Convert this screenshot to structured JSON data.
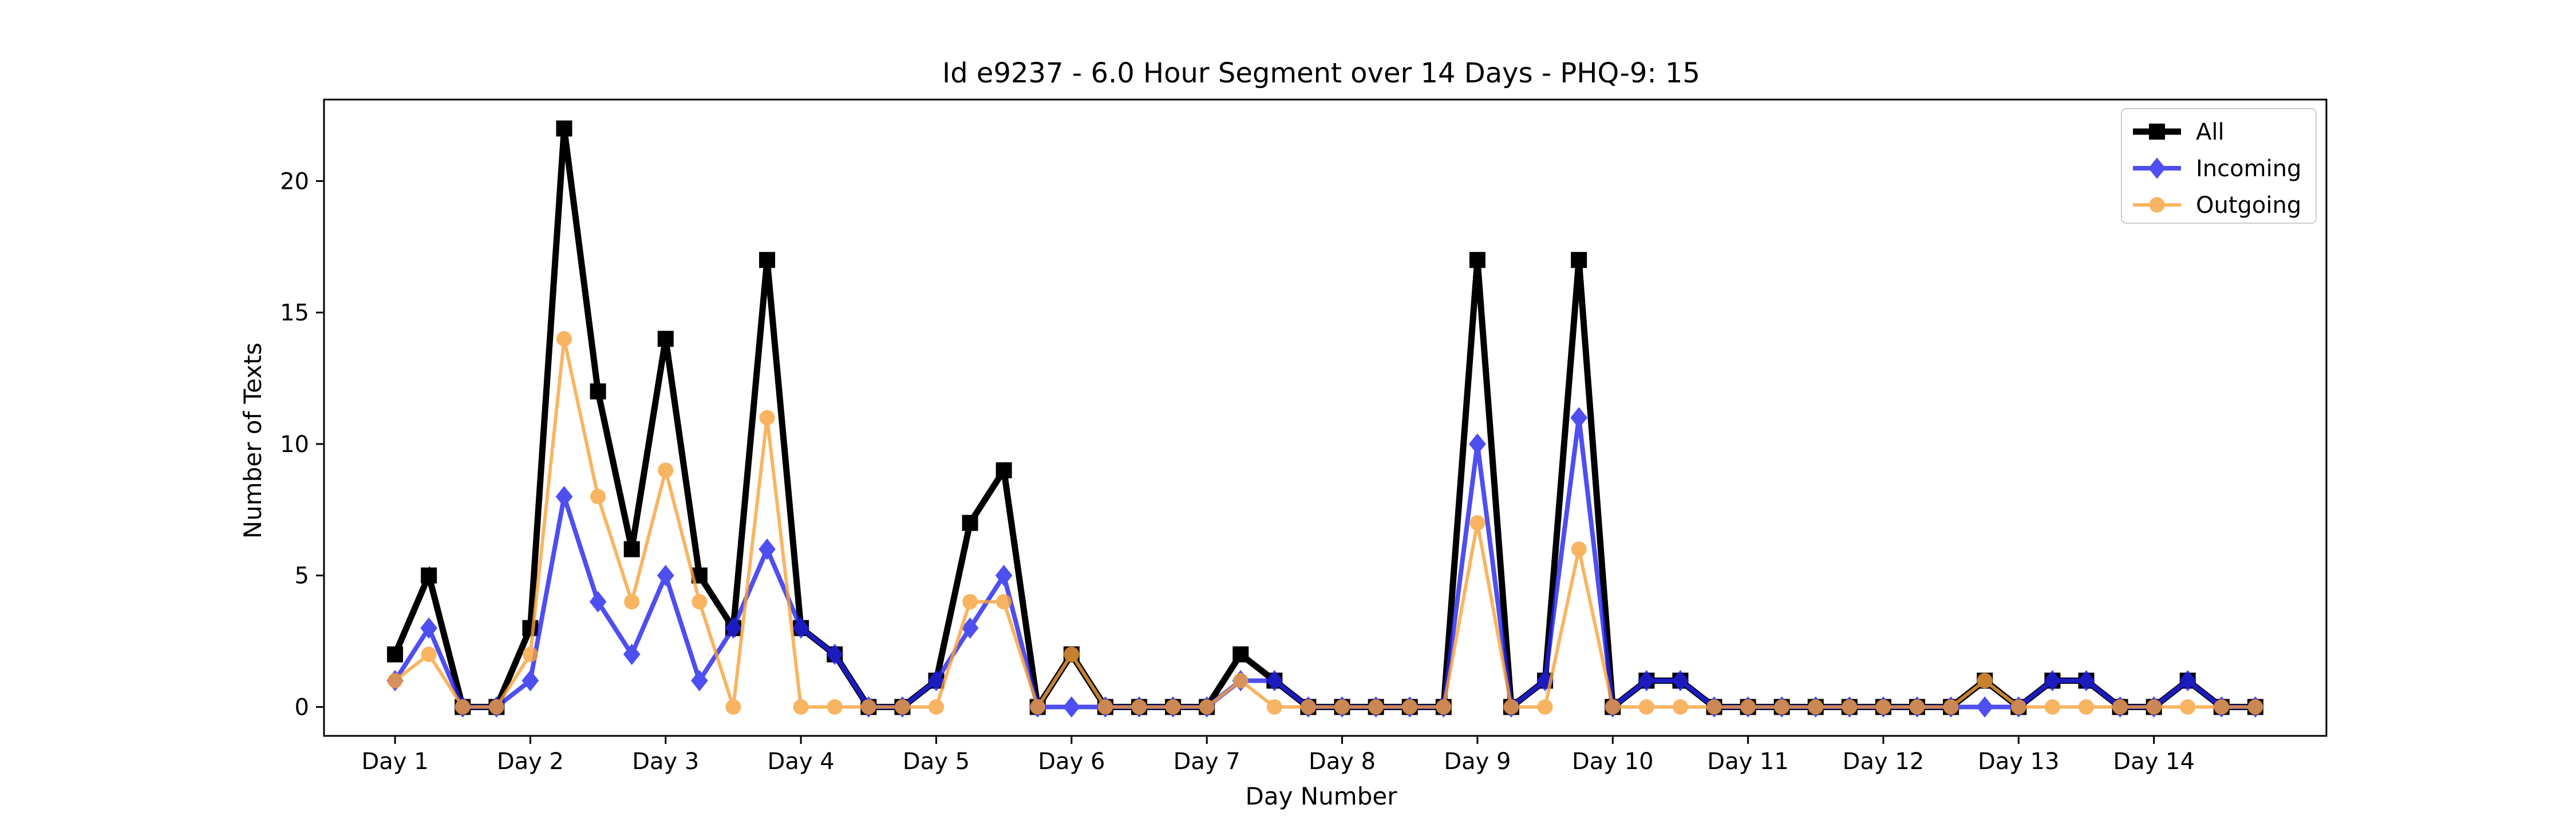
{
  "chart_data": {
    "type": "line",
    "title": "Id e9237 - 6.0 Hour Segment over 14 Days - PHQ-9: 15",
    "xlabel": "Day Number",
    "ylabel": "Number of Texts",
    "x_tick_labels": [
      "Day 1",
      "Day 2",
      "Day 3",
      "Day 4",
      "Day 5",
      "Day 6",
      "Day 7",
      "Day 8",
      "Day 9",
      "Day 10",
      "Day 11",
      "Day 12",
      "Day 13",
      "Day 14"
    ],
    "x_tick_positions": [
      0,
      4,
      8,
      12,
      16,
      20,
      24,
      28,
      32,
      36,
      40,
      44,
      48,
      52
    ],
    "x": [
      0,
      1,
      2,
      3,
      4,
      5,
      6,
      7,
      8,
      9,
      10,
      11,
      12,
      13,
      14,
      15,
      16,
      17,
      18,
      19,
      20,
      21,
      22,
      23,
      24,
      25,
      26,
      27,
      28,
      29,
      30,
      31,
      32,
      33,
      34,
      35,
      36,
      37,
      38,
      39,
      40,
      41,
      42,
      43,
      44,
      45,
      46,
      47,
      48,
      49,
      50,
      51,
      52,
      53,
      54,
      55
    ],
    "xlim": [
      -2.1,
      57.1
    ],
    "y_ticks": [
      0,
      5,
      10,
      15,
      20
    ],
    "ylim": [
      -1.1,
      23.1
    ],
    "grid": false,
    "legend_position": "top-right",
    "series": [
      {
        "name": "All",
        "color": "#000000",
        "marker": "square",
        "values": [
          2,
          5,
          0,
          0,
          3,
          22,
          12,
          6,
          14,
          5,
          3,
          17,
          3,
          2,
          0,
          0,
          1,
          7,
          9,
          0,
          2,
          0,
          0,
          0,
          0,
          2,
          1,
          0,
          0,
          0,
          0,
          0,
          17,
          0,
          1,
          17,
          0,
          1,
          1,
          0,
          0,
          0,
          0,
          0,
          0,
          0,
          0,
          1,
          0,
          1,
          1,
          0,
          0,
          1,
          0,
          0
        ]
      },
      {
        "name": "Incoming",
        "color": "#2222ee",
        "marker": "diamond",
        "values": [
          1,
          3,
          0,
          0,
          1,
          8,
          4,
          2,
          5,
          1,
          3,
          6,
          3,
          2,
          0,
          0,
          1,
          3,
          5,
          0,
          0,
          0,
          0,
          0,
          0,
          1,
          1,
          0,
          0,
          0,
          0,
          0,
          10,
          0,
          1,
          11,
          0,
          1,
          1,
          0,
          0,
          0,
          0,
          0,
          0,
          0,
          0,
          0,
          0,
          1,
          1,
          0,
          0,
          1,
          0,
          0
        ]
      },
      {
        "name": "Outgoing",
        "color": "#f7a23a",
        "marker": "circle",
        "values": [
          1,
          2,
          0,
          0,
          2,
          14,
          8,
          4,
          9,
          4,
          0,
          11,
          0,
          0,
          0,
          0,
          0,
          4,
          4,
          0,
          2,
          0,
          0,
          0,
          0,
          1,
          0,
          0,
          0,
          0,
          0,
          0,
          7,
          0,
          0,
          6,
          0,
          0,
          0,
          0,
          0,
          0,
          0,
          0,
          0,
          0,
          0,
          1,
          0,
          0,
          0,
          0,
          0,
          0,
          0,
          0
        ]
      }
    ]
  }
}
